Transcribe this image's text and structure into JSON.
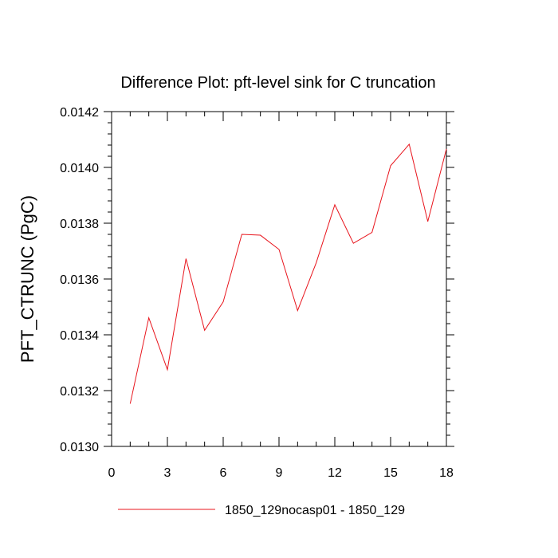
{
  "chart_data": {
    "type": "line",
    "title": "Difference Plot: pft-level sink for C truncation",
    "ylabel": "PFT_CTRUNC  (PgC)",
    "xlabel": "",
    "xlim": [
      0,
      18
    ],
    "ylim": [
      0.013,
      0.0142
    ],
    "x_ticks": [
      0,
      3,
      6,
      9,
      12,
      15,
      18
    ],
    "x_tick_labels": [
      "0",
      "3",
      "6",
      "9",
      "12",
      "15",
      "18"
    ],
    "y_ticks": [
      0.013,
      0.0132,
      0.0134,
      0.0136,
      0.0138,
      0.014,
      0.0142
    ],
    "y_tick_labels": [
      "0.0130",
      "0.0132",
      "0.0134",
      "0.0136",
      "0.0138",
      "0.0140",
      "0.0142"
    ],
    "grid": false,
    "legend_position": "bottom",
    "series": [
      {
        "name": "1850_129nocasp01 - 1850_129",
        "color": "#e8141c",
        "x": [
          1,
          2,
          3,
          4,
          5,
          6,
          7,
          8,
          9,
          10,
          11,
          12,
          13,
          14,
          15,
          16,
          17,
          18
        ],
        "values": [
          0.013153,
          0.013461,
          0.013275,
          0.013673,
          0.013416,
          0.013518,
          0.01376,
          0.013757,
          0.013706,
          0.013487,
          0.013658,
          0.013866,
          0.013728,
          0.013767,
          0.014006,
          0.014083,
          0.013806,
          0.014066
        ]
      }
    ]
  }
}
